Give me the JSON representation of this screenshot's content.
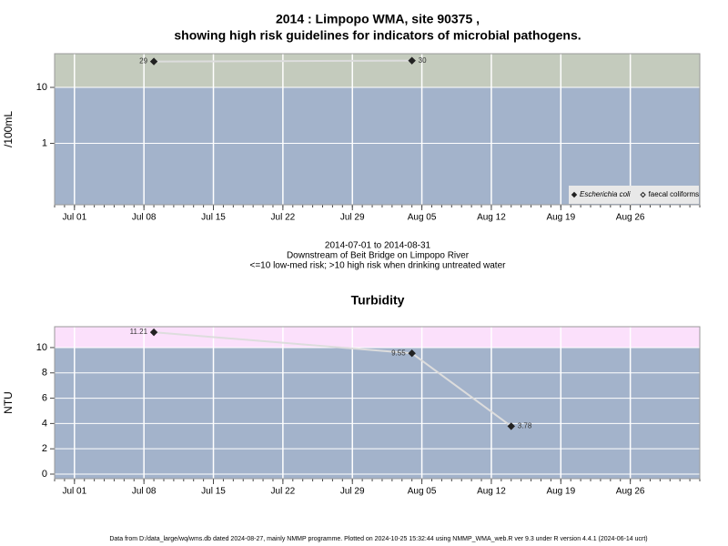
{
  "chart_data": [
    {
      "type": "line",
      "title": [
        "2014 : Limpopo WMA, site 90375 ,",
        "showing high risk guidelines for indicators of microbial pathogens."
      ],
      "ylabel": "/100mL",
      "log_scale": true,
      "grid": true,
      "legend": "bottom-right",
      "threshold": 10,
      "above_color": "#c4cbbd",
      "below_color": "#a3b3cb",
      "x": [
        "Jul 09",
        "Aug 04"
      ],
      "series": [
        {
          "name": "Escherichia coli",
          "color": "#222222",
          "marker": "filled-diamond",
          "values": [
            29,
            30
          ]
        },
        {
          "name": "faecal coliforms",
          "color": "#222222",
          "marker": "open-diamond",
          "values": [
            null,
            null
          ]
        }
      ],
      "xlim": [
        "Jun 29",
        "Sep 02"
      ],
      "xticks": [
        "Jul 01",
        "Jul 08",
        "Jul 15",
        "Jul 22",
        "Jul 29",
        "Aug 05",
        "Aug 12",
        "Aug 19",
        "Aug 26"
      ],
      "ylim": [
        0.08,
        40
      ],
      "yticks": [
        1,
        10
      ],
      "annotations": [
        "2014-07-01 to 2014-08-31",
        "Downstream of Beit Bridge on Limpopo River",
        "<=10 low-med risk; >10 high risk when drinking untreated water"
      ]
    },
    {
      "type": "line",
      "title": [
        "Turbidity"
      ],
      "ylabel": "NTU",
      "log_scale": false,
      "grid": true,
      "threshold": 10,
      "above_color": "#fbe0fb",
      "below_color": "#a3b3cb",
      "x": [
        "Jul 09",
        "Aug 04",
        "Aug 14"
      ],
      "series": [
        {
          "name": "Turbidity",
          "color": "#222222",
          "marker": "filled-diamond",
          "values": [
            11.21,
            9.55,
            3.78
          ]
        }
      ],
      "xlim": [
        "Jun 29",
        "Sep 02"
      ],
      "xticks": [
        "Jul 01",
        "Jul 08",
        "Jul 15",
        "Jul 22",
        "Jul 29",
        "Aug 05",
        "Aug 12",
        "Aug 19",
        "Aug 26"
      ],
      "ylim": [
        -0.36,
        11.65
      ],
      "yticks": [
        0,
        2,
        4,
        6,
        8,
        10
      ]
    }
  ],
  "footer": "Data from D:/data_large/wq/wms.db dated 2024-08-27, mainly NMMP programme. Plotted on 2024-10-25 15:32:44 using NMMP_WMA_web.R ver 9.3 under R version 4.4.1 (2024-06-14 ucrt)"
}
